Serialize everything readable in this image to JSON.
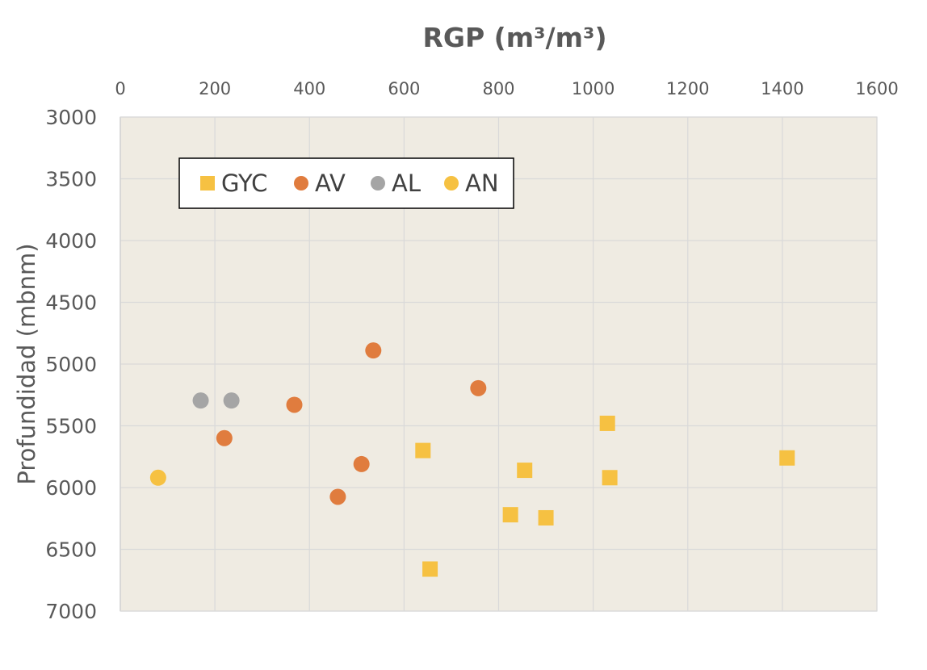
{
  "chart_data": {
    "type": "scatter",
    "title": "",
    "xlabel": "RGP (m³/m³)",
    "ylabel": "Profundidad (mbnm)",
    "xlim": [
      0,
      1600
    ],
    "ylim": [
      3000,
      7000
    ],
    "y_inverted": true,
    "x_axis_position": "top",
    "x_ticks": [
      "0",
      "200",
      "400",
      "600",
      "800",
      "1000",
      "1200",
      "1400",
      "1600"
    ],
    "y_ticks": [
      "3000",
      "3500",
      "4000",
      "4500",
      "5000",
      "5500",
      "6000",
      "6500",
      "7000"
    ],
    "grid": true,
    "plot_background": "#efebe2",
    "legend_position": "top-left",
    "series": [
      {
        "name": "GYC",
        "marker": "square",
        "color": "#f6c142",
        "points": [
          {
            "x": 1030,
            "y": 5480
          },
          {
            "x": 1410,
            "y": 5760
          },
          {
            "x": 640,
            "y": 5700
          },
          {
            "x": 855,
            "y": 5860
          },
          {
            "x": 1035,
            "y": 5920
          },
          {
            "x": 825,
            "y": 6220
          },
          {
            "x": 900,
            "y": 6245
          },
          {
            "x": 655,
            "y": 6660
          }
        ]
      },
      {
        "name": "AV",
        "marker": "circle",
        "color": "#e07c3e",
        "points": [
          {
            "x": 535,
            "y": 4890
          },
          {
            "x": 757,
            "y": 5195
          },
          {
            "x": 368,
            "y": 5330
          },
          {
            "x": 220,
            "y": 5600
          },
          {
            "x": 510,
            "y": 5810
          },
          {
            "x": 460,
            "y": 6075
          }
        ]
      },
      {
        "name": "AL",
        "marker": "circle",
        "color": "#a5a5a5",
        "points": [
          {
            "x": 170,
            "y": 5295
          },
          {
            "x": 235,
            "y": 5295
          }
        ]
      },
      {
        "name": "AN",
        "marker": "circle",
        "color": "#f6c142",
        "points": [
          {
            "x": 80,
            "y": 5920
          }
        ]
      }
    ]
  }
}
